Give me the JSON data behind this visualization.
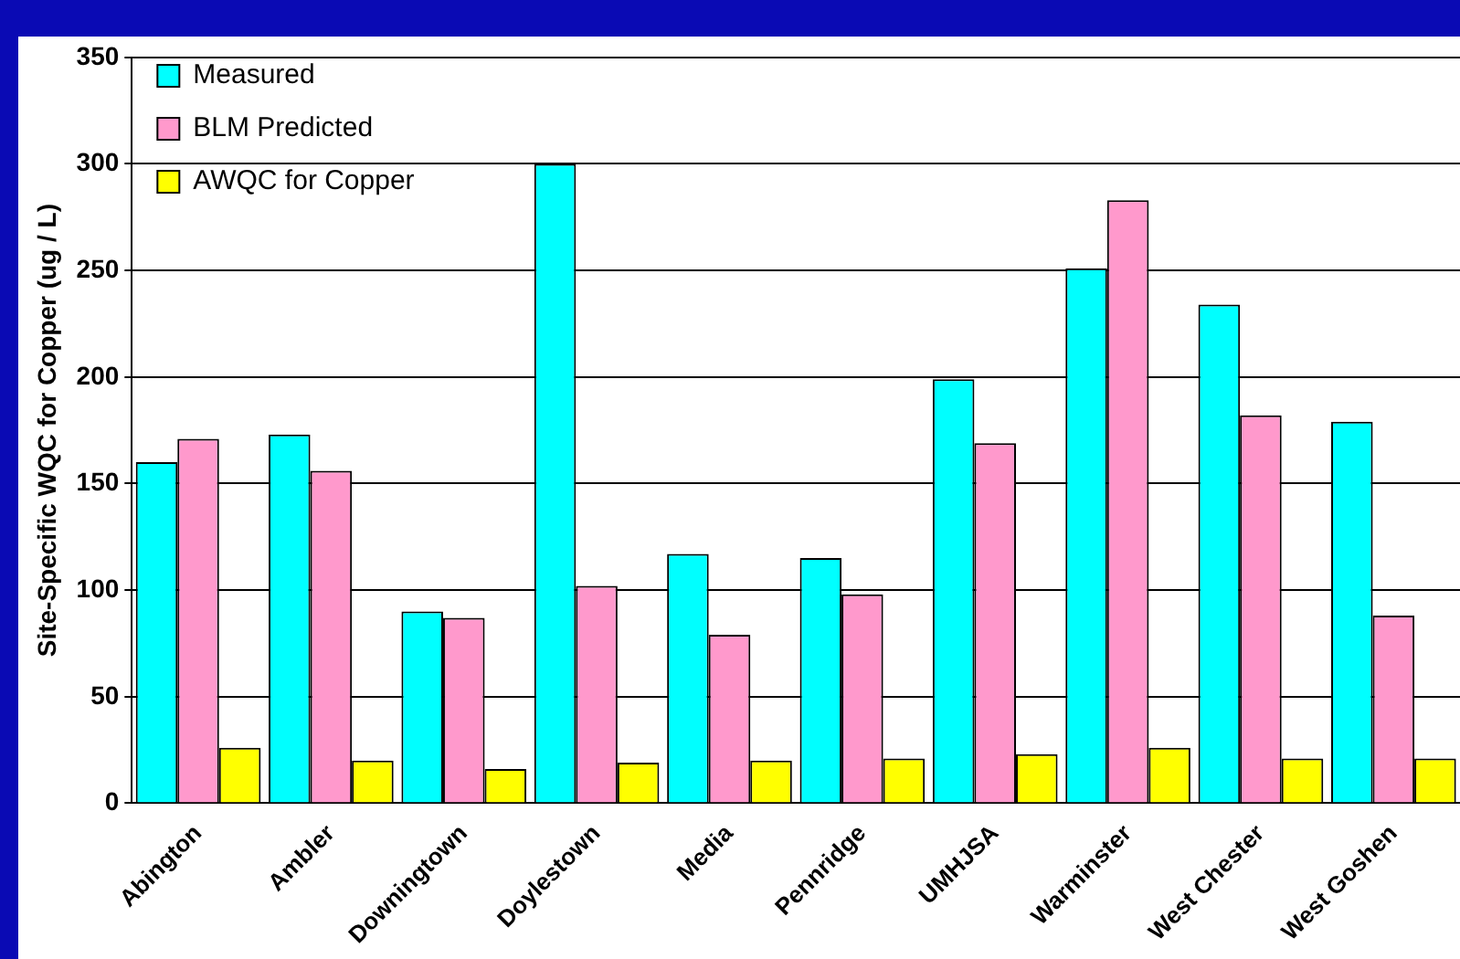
{
  "chart_data": {
    "type": "bar",
    "ylabel": "Site-Specific WQC for Copper (ug / L)",
    "categories": [
      "Abington",
      "Ambler",
      "Downingtown",
      "Doylestown",
      "Media",
      "Pennridge",
      "UMHJSA",
      "Warminster",
      "West Chester",
      "West Goshen"
    ],
    "series": [
      {
        "name": "Measured",
        "color": "#00ffff",
        "values": [
          160,
          173,
          90,
          300,
          117,
          115,
          199,
          251,
          234,
          179
        ]
      },
      {
        "name": "BLM Predicted",
        "color": "#ff99cc",
        "values": [
          171,
          156,
          87,
          102,
          79,
          98,
          169,
          283,
          182,
          88
        ]
      },
      {
        "name": "AWQC for Copper",
        "color": "#ffff00",
        "values": [
          26,
          20,
          16,
          19,
          20,
          21,
          23,
          26,
          21,
          21
        ]
      }
    ],
    "ylim": [
      0,
      350
    ],
    "yticks": [
      0,
      50,
      100,
      150,
      200,
      250,
      300,
      350
    ],
    "grid": "y",
    "legend": "top left"
  }
}
